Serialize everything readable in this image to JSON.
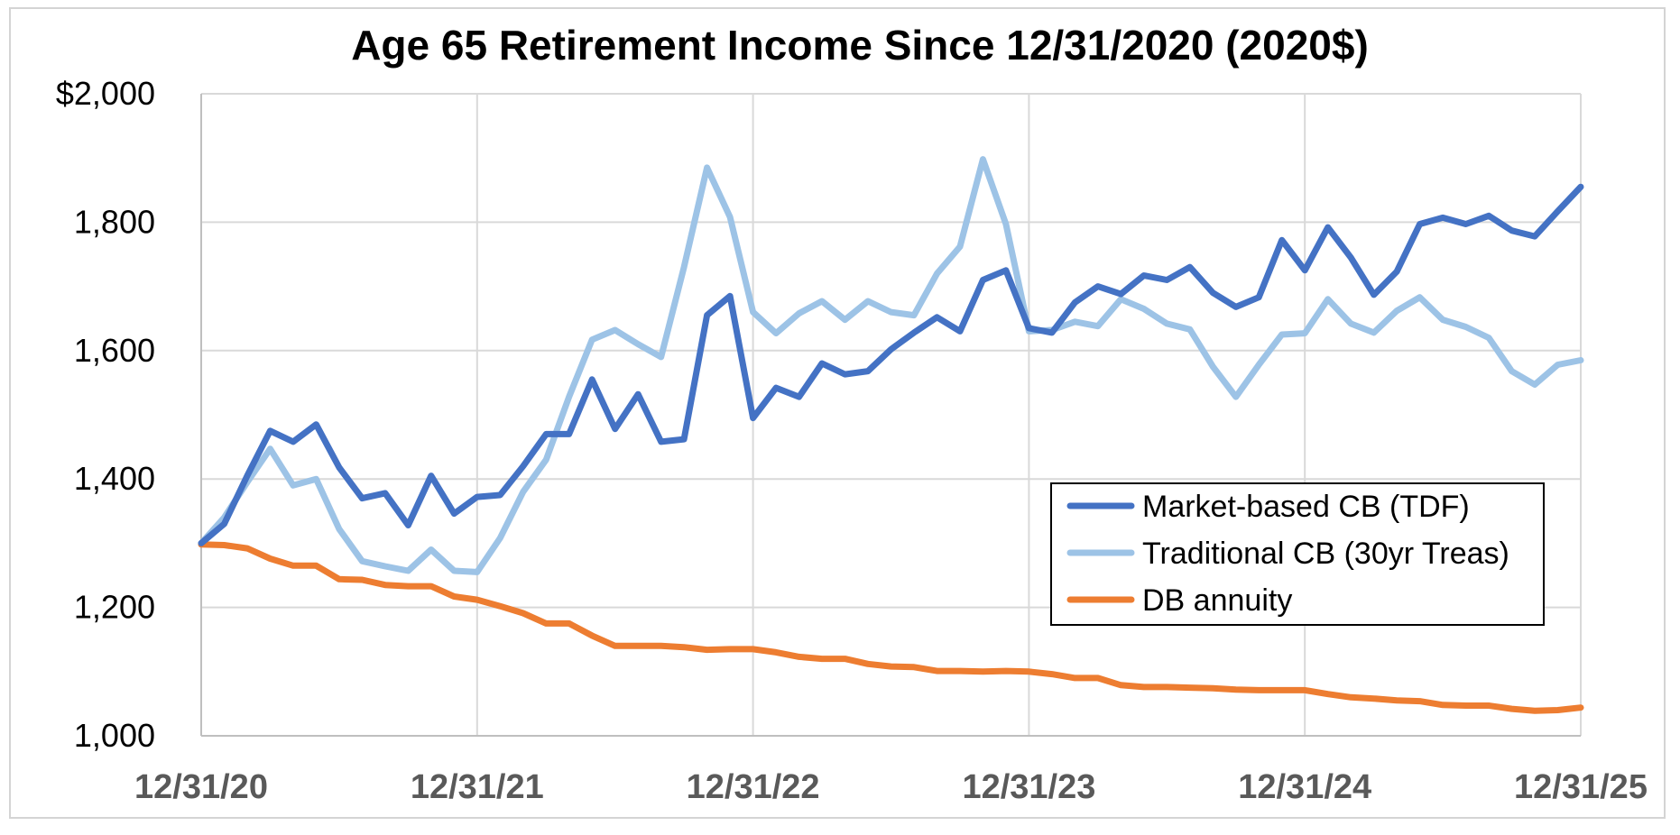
{
  "chart_data": {
    "type": "line",
    "title": "Age 65 Retirement Income Since 12/31/2020 (2020$)",
    "xlabel": "",
    "ylabel": "",
    "ylim": [
      1000,
      2000
    ],
    "y_ticks": [
      1000,
      1200,
      1400,
      1600,
      1800,
      2000
    ],
    "y_tick_labels": [
      "1,000",
      "1,200",
      "1,400",
      "1,600",
      "1,800",
      "$2,000"
    ],
    "x_tick_labels": [
      "12/31/20",
      "12/31/21",
      "12/31/22",
      "12/31/23",
      "12/31/24",
      "12/31/25"
    ],
    "x_start": "2020-12-31",
    "x_end": "2025-12-31",
    "grid": true,
    "legend_position": "lower-right",
    "series": [
      {
        "name": "Market-based CB (TDF)",
        "color": "#4472C4",
        "values": [
          1300,
          1330,
          1405,
          1475,
          1458,
          1485,
          1418,
          1370,
          1378,
          1328,
          1405,
          1346,
          1372,
          1375,
          1420,
          1470,
          1470,
          1555,
          1478,
          1532,
          1458,
          1462,
          1655,
          1685,
          1495,
          1542,
          1528,
          1580,
          1563,
          1568,
          1602,
          1628,
          1652,
          1630,
          1710,
          1725,
          1635,
          1628,
          1675,
          1700,
          1688,
          1717,
          1710,
          1730,
          1690,
          1668,
          1683,
          1772,
          1725,
          1792,
          1745,
          1687,
          1723,
          1797,
          1807,
          1797,
          1810,
          1787,
          1778,
          1817,
          1855
        ]
      },
      {
        "name": "Traditional CB (30yr Treas)",
        "color": "#9DC3E6",
        "values": [
          1300,
          1340,
          1395,
          1447,
          1390,
          1400,
          1322,
          1272,
          1264,
          1257,
          1290,
          1257,
          1255,
          1308,
          1380,
          1430,
          1528,
          1617,
          1632,
          1610,
          1590,
          1730,
          1885,
          1808,
          1660,
          1627,
          1658,
          1677,
          1648,
          1677,
          1660,
          1655,
          1720,
          1762,
          1898,
          1797,
          1630,
          1632,
          1645,
          1638,
          1680,
          1665,
          1642,
          1633,
          1575,
          1528,
          1578,
          1625,
          1627,
          1680,
          1642,
          1628,
          1662,
          1683,
          1648,
          1637,
          1620,
          1568,
          1547,
          1578,
          1585
        ]
      },
      {
        "name": "DB annuity",
        "color": "#ED7D31",
        "values": [
          1298,
          1297,
          1292,
          1276,
          1265,
          1265,
          1244,
          1243,
          1235,
          1233,
          1233,
          1217,
          1212,
          1202,
          1191,
          1175,
          1175,
          1156,
          1140,
          1140,
          1140,
          1138,
          1134,
          1135,
          1135,
          1130,
          1123,
          1120,
          1120,
          1112,
          1108,
          1107,
          1101,
          1101,
          1100,
          1101,
          1100,
          1096,
          1090,
          1090,
          1079,
          1076,
          1076,
          1075,
          1074,
          1072,
          1071,
          1071,
          1071,
          1065,
          1060,
          1058,
          1055,
          1054,
          1048,
          1047,
          1047,
          1042,
          1039,
          1040,
          1044
        ]
      }
    ]
  }
}
